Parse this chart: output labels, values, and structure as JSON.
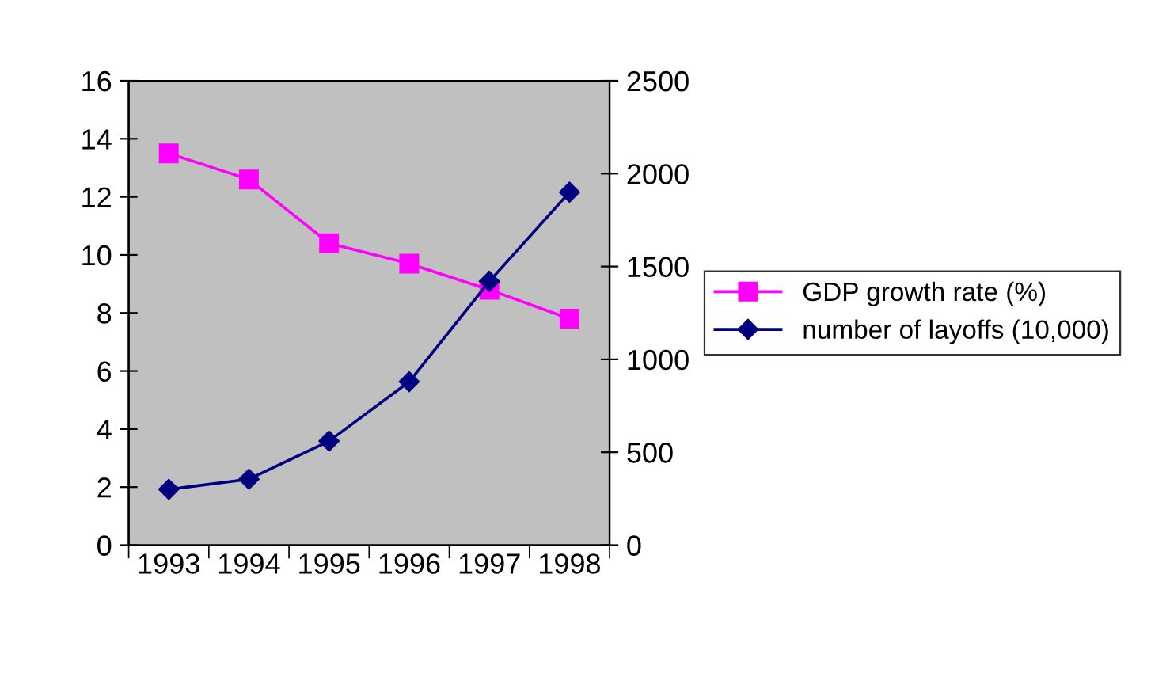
{
  "chart_data": {
    "type": "line",
    "categories": [
      "1993",
      "1994",
      "1995",
      "1996",
      "1997",
      "1998"
    ],
    "series": [
      {
        "name": "GDP growth rate (%)",
        "color": "#ff00ff",
        "marker": "square",
        "values": [
          13.5,
          12.6,
          10.4,
          9.7,
          8.8,
          7.8
        ]
      },
      {
        "name": "number of layoffs (10,000)",
        "color": "#000080",
        "marker": "diamond",
        "axis": "y2",
        "values": [
          300,
          355,
          560,
          880,
          1420,
          1900
        ]
      }
    ],
    "ylim": [
      0,
      16
    ],
    "yticks": [
      0,
      2,
      4,
      6,
      8,
      10,
      12,
      14,
      16
    ],
    "y2lim": [
      0,
      2500
    ],
    "y2ticks": [
      0,
      500,
      1000,
      1500,
      2000,
      2500
    ],
    "grid": false,
    "legend": "right"
  }
}
